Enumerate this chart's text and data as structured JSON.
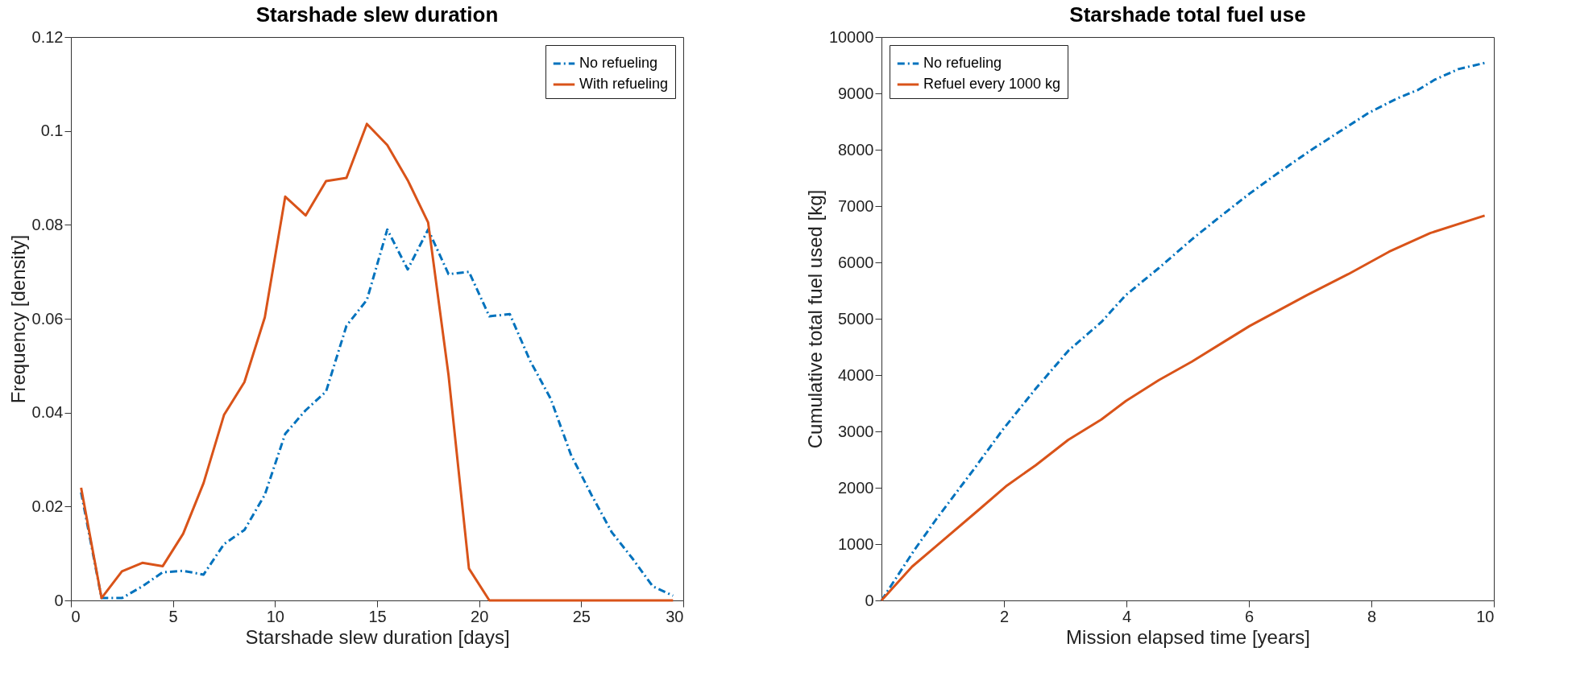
{
  "chart_data": [
    {
      "type": "line",
      "title": "Starshade slew duration",
      "xlabel": "Starshade slew duration [days]",
      "ylabel": "Frequency [density]",
      "xlim": [
        0,
        30
      ],
      "xticks": [
        0,
        5,
        10,
        15,
        20,
        25,
        30
      ],
      "ylim": [
        0,
        0.12
      ],
      "yticks": [
        0,
        0.02,
        0.04,
        0.06,
        0.08,
        0.1,
        0.12
      ],
      "grid": false,
      "legend": "top right",
      "marker": "none",
      "x": [
        0.5,
        1.5,
        2.5,
        3.5,
        4.5,
        5.5,
        6.5,
        7.5,
        8.5,
        9.5,
        10.5,
        11.5,
        12.5,
        13.5,
        14.5,
        15.5,
        16.5,
        17.5,
        18.5,
        19.5,
        20.5,
        21.5,
        22.5,
        23.5,
        24.5,
        25.5,
        26.5,
        27.5,
        28.5,
        29.5
      ],
      "series": [
        {
          "name": "No refueling",
          "color": "#0072bd",
          "line_style": "dashed",
          "values": [
            0.023,
            0.0005,
            0.0005,
            0.003,
            0.006,
            0.0063,
            0.0055,
            0.012,
            0.015,
            0.0225,
            0.0355,
            0.0405,
            0.0445,
            0.0585,
            0.064,
            0.079,
            0.0705,
            0.079,
            0.0695,
            0.07,
            0.0605,
            0.061,
            0.051,
            0.043,
            0.031,
            0.0225,
            0.0145,
            0.009,
            0.003,
            0.001
          ]
        },
        {
          "name": "With refueling",
          "color": "#d95319",
          "line_style": "solid",
          "values": [
            0.024,
            0.0005,
            0.0062,
            0.008,
            0.0073,
            0.0142,
            0.025,
            0.0395,
            0.0465,
            0.0603,
            0.086,
            0.082,
            0.0893,
            0.09,
            0.1015,
            0.097,
            0.0895,
            0.0805,
            0.048,
            0.0068,
            0,
            0,
            0,
            0,
            0,
            0,
            0,
            0,
            0,
            0
          ]
        }
      ]
    },
    {
      "type": "line",
      "title": "Starshade total fuel use",
      "xlabel": "Mission elapsed time [years]",
      "ylabel": "Cumulative total fuel used [kg]",
      "xlim": [
        0,
        10
      ],
      "xticks": [
        2,
        4,
        6,
        8,
        10
      ],
      "ylim": [
        0,
        10000
      ],
      "yticks": [
        0,
        1000,
        2000,
        3000,
        4000,
        5000,
        6000,
        7000,
        8000,
        9000,
        10000
      ],
      "grid": false,
      "legend": "top left",
      "marker": "none",
      "series": [
        {
          "name": "No refueling",
          "color": "#0072bd",
          "line_style": "dashed",
          "x": [
            0,
            0.54,
            0.9,
            1.51,
            1.98,
            2.52,
            3.05,
            3.59,
            3.99,
            4.53,
            5.07,
            5.54,
            6.01,
            6.48,
            7.01,
            7.48,
            7.95,
            8.42,
            8.76,
            9.03,
            9.42,
            9.85
          ],
          "values": [
            0,
            900,
            1450,
            2330,
            3030,
            3760,
            4430,
            4940,
            5420,
            5900,
            6410,
            6820,
            7220,
            7590,
            7990,
            8320,
            8650,
            8910,
            9060,
            9240,
            9430,
            9540
          ]
        },
        {
          "name": "Refuel every 1000 kg",
          "color": "#d95319",
          "line_style": "solid",
          "x": [
            0,
            0.5,
            0.9,
            1.58,
            2.05,
            2.52,
            3.05,
            3.59,
            3.99,
            4.53,
            5.07,
            6.01,
            6.95,
            7.62,
            8.29,
            8.96,
            9.85
          ],
          "values": [
            0,
            600,
            970,
            1600,
            2040,
            2400,
            2850,
            3210,
            3540,
            3910,
            4240,
            4870,
            5420,
            5790,
            6190,
            6520,
            6830
          ]
        }
      ]
    }
  ]
}
